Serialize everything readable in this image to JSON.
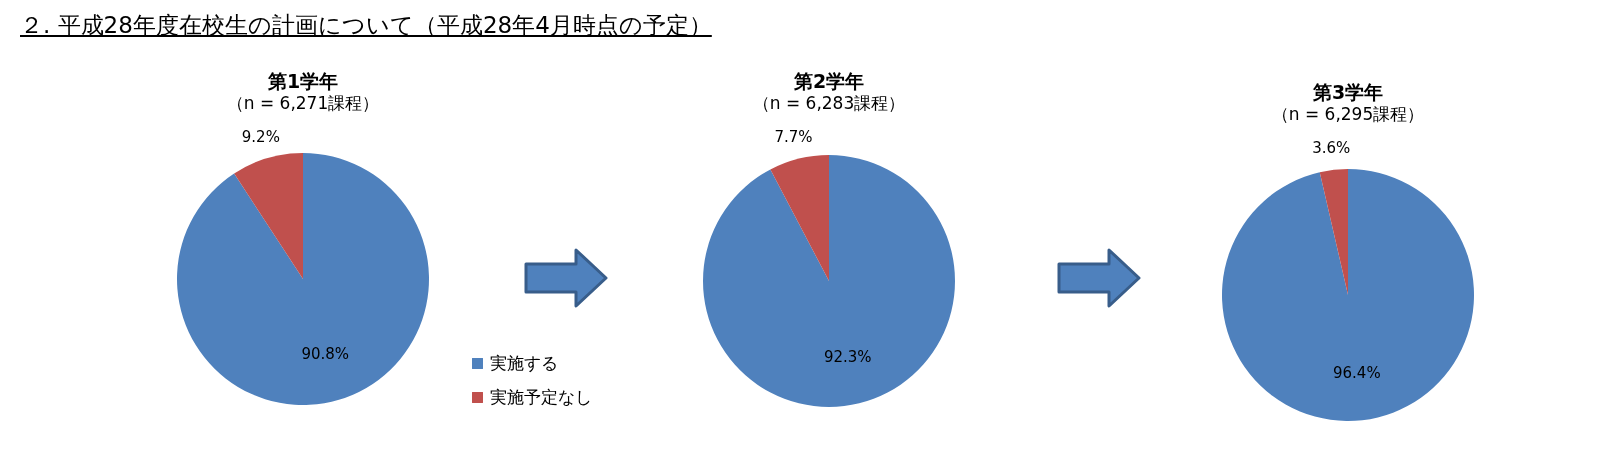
{
  "chart_data": [
    {
      "type": "pie",
      "title": "第1学年",
      "subtitle": "（n = 6,271課程）",
      "annotations": [
        "２. 平成28年度在校生の計画について（平成28年4月時点の予定）"
      ],
      "categories": [
        "実施する",
        "実施予定なし"
      ],
      "values": [
        90.8,
        9.2
      ],
      "value_labels": [
        "90.8%",
        "9.2%"
      ],
      "colors": [
        "#4f81bd",
        "#c0504d"
      ],
      "legend": "bottom right"
    },
    {
      "type": "pie",
      "title": "第2学年",
      "subtitle": "（n = 6,283課程）",
      "categories": [
        null,
        null
      ],
      "values": [
        92.3,
        7.7
      ],
      "value_labels": [
        "92.3%",
        "7.7%"
      ],
      "colors": [
        "#4f81bd",
        "#c0504d"
      ]
    },
    {
      "type": "pie",
      "title": "第3学年",
      "subtitle": "（n = 6,295課程）",
      "categories": [
        null,
        null
      ],
      "values": [
        96.4,
        3.6
      ],
      "value_labels": [
        "96.4%",
        "3.6%"
      ],
      "colors": [
        "#4f81bd",
        "#c0504d"
      ]
    }
  ]
}
